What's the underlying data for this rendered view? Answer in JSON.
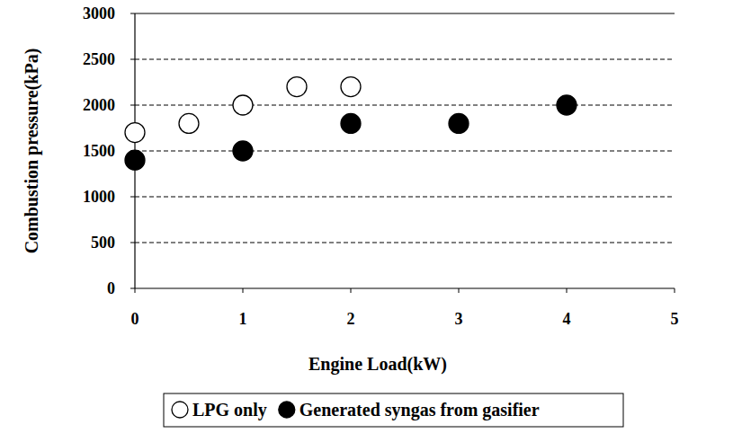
{
  "chart_data": {
    "type": "scatter",
    "x_label": "Engine Load(kW)",
    "y_label": "Combustion pressure(kPa)",
    "xlim": [
      0,
      5
    ],
    "xticks": [
      0,
      1,
      2,
      3,
      4,
      5
    ],
    "ylim": [
      0,
      3000
    ],
    "yticks": [
      0,
      500,
      1000,
      1500,
      2000,
      2500,
      3000
    ],
    "grid": true,
    "legend": "bottom",
    "series": [
      {
        "name": "LPG only",
        "color": "#000000",
        "marker": "circle-open",
        "x": [
          0,
          0.5,
          1,
          1.5,
          2
        ],
        "values": [
          1700,
          1800,
          2000,
          2200,
          2200
        ]
      },
      {
        "name": "Generated syngas from gasifier",
        "color": "#000000",
        "marker": "circle",
        "x": [
          0,
          1,
          2,
          3,
          4
        ],
        "values": [
          1400,
          1500,
          1800,
          1800,
          2000
        ]
      }
    ]
  }
}
